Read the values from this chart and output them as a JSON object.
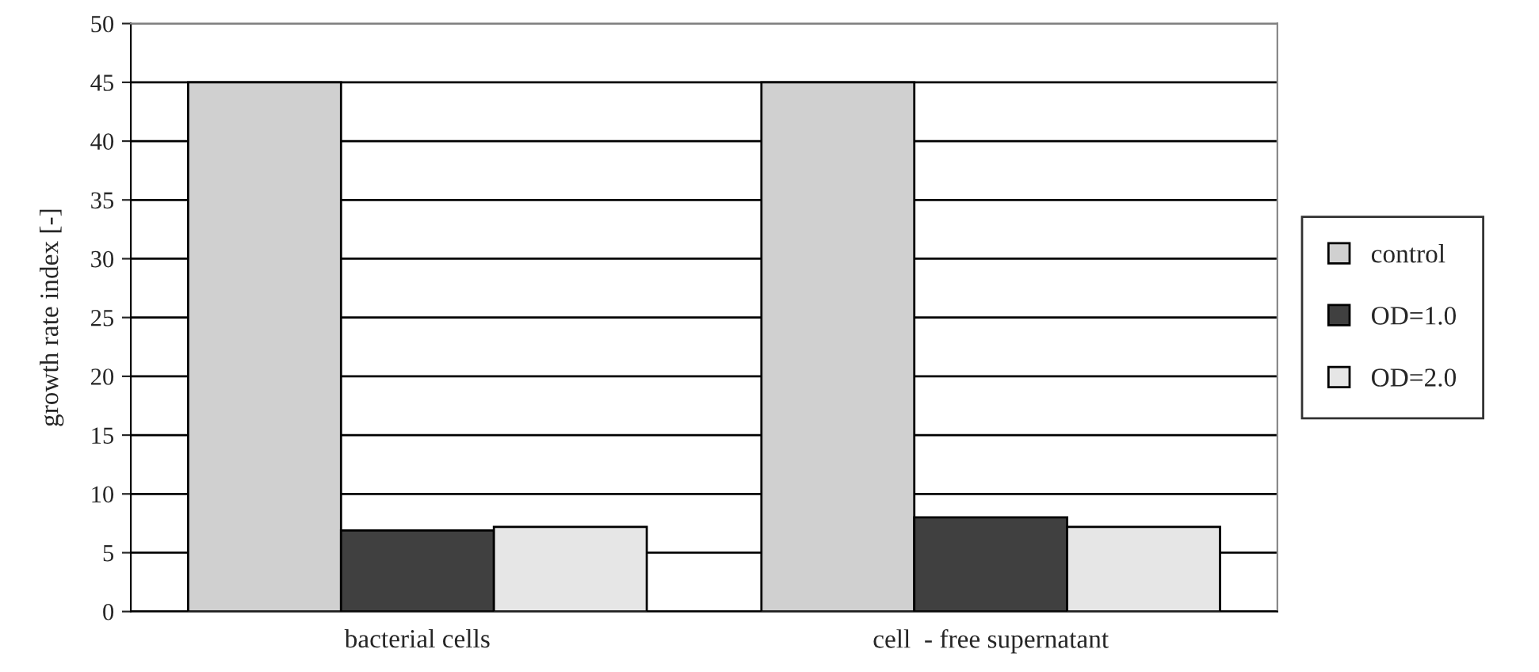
{
  "chart_data": {
    "type": "bar",
    "ylabel": "growth rate index [-]",
    "categories": [
      "bacterial cells",
      "cell  - free supernatant"
    ],
    "series": [
      {
        "name": "control",
        "color": "#d0d0d0",
        "values": [
          45,
          45
        ]
      },
      {
        "name": "OD=1.0",
        "color": "#404040",
        "values": [
          6.9,
          8.0
        ]
      },
      {
        "name": "OD=2.0",
        "color": "#e6e6e6",
        "values": [
          7.2,
          7.2
        ]
      }
    ],
    "ylim": [
      0,
      50
    ],
    "yticks": [
      0,
      5,
      10,
      15,
      20,
      25,
      30,
      35,
      40,
      45,
      50
    ],
    "grid": "y",
    "legend": "right"
  }
}
